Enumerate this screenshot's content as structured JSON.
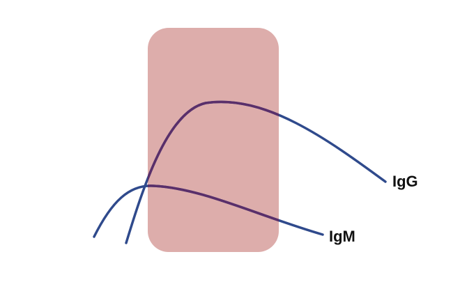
{
  "diagram": {
    "type": "antibody-response-curves",
    "window_color": "#ddadab",
    "overlap_color": "#5a2f6a",
    "curves": [
      {
        "id": "igg",
        "label": "IgG",
        "color": "#2f4a8c"
      },
      {
        "id": "igm",
        "label": "IgM",
        "color": "#2f4a8c"
      }
    ]
  }
}
